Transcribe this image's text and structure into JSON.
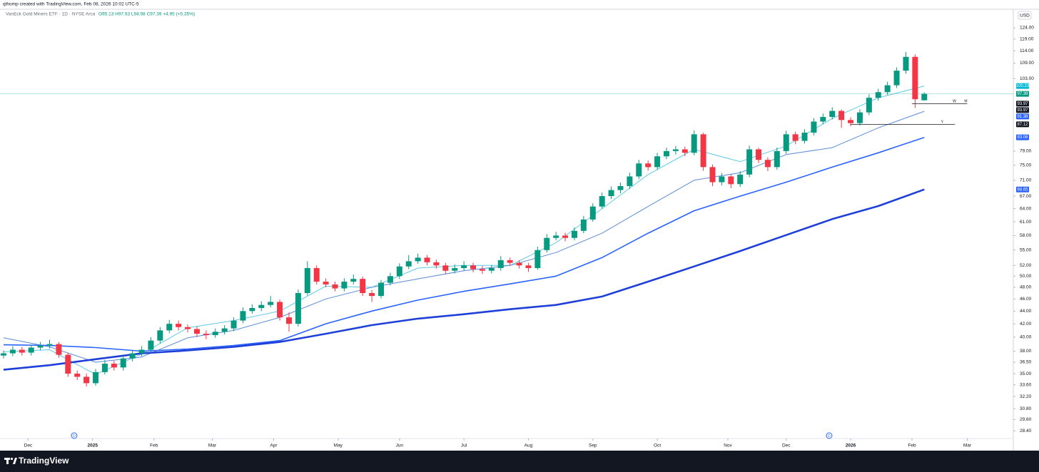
{
  "header": {
    "credit": "qthomp created with TradingView.com, Feb 08, 2026 10:02 UTC-5",
    "brand": "TradingView"
  },
  "chart_data": {
    "type": "candlestick",
    "legend": {
      "symbol": "VanEck Gold Miners ETF · 1D · NYSE Arca",
      "ohlc": "O95.13 H97.93 L94.98 C97.39 +4.95 (+5.35%)"
    },
    "currency": "USD",
    "log_scale": true,
    "grid": false,
    "up_color": "#089981",
    "down_color": "#f23645",
    "xlim": [
      0,
      329
    ],
    "xticks": [
      {
        "value": 8,
        "label": "Dec"
      },
      {
        "value": 29,
        "label": "2025"
      },
      {
        "value": 49,
        "label": "Feb"
      },
      {
        "value": 68,
        "label": "Mar"
      },
      {
        "value": 88,
        "label": "Apr"
      },
      {
        "value": 109,
        "label": "May"
      },
      {
        "value": 129,
        "label": "Jun"
      },
      {
        "value": 150,
        "label": "Jul"
      },
      {
        "value": 171,
        "label": "Aug"
      },
      {
        "value": 192,
        "label": "Sep"
      },
      {
        "value": 213,
        "label": "Oct"
      },
      {
        "value": 236,
        "label": "Nov"
      },
      {
        "value": 255,
        "label": "Dec"
      },
      {
        "value": 276,
        "label": "2026"
      },
      {
        "value": 296,
        "label": "Feb"
      },
      {
        "value": 314,
        "label": "Mar"
      }
    ],
    "ylim": [
      26.9,
      132.7
    ],
    "yticks": [
      {
        "value": 124,
        "label": "124.00"
      },
      {
        "value": 119,
        "label": "119.00"
      },
      {
        "value": 114,
        "label": "114.00"
      },
      {
        "value": 109,
        "label": "109.00"
      },
      {
        "value": 103,
        "label": "103.00"
      },
      {
        "value": 79,
        "label": "79.00"
      },
      {
        "value": 75,
        "label": "75.00"
      },
      {
        "value": 71,
        "label": "71.00"
      },
      {
        "value": 67,
        "label": "67.00"
      },
      {
        "value": 64,
        "label": "64.00"
      },
      {
        "value": 61,
        "label": "61.00"
      },
      {
        "value": 58,
        "label": "58.00"
      },
      {
        "value": 55,
        "label": "55.00"
      },
      {
        "value": 52,
        "label": "52.00"
      },
      {
        "value": 50,
        "label": "50.00"
      },
      {
        "value": 48,
        "label": "48.00"
      },
      {
        "value": 46,
        "label": "46.00"
      },
      {
        "value": 44,
        "label": "44.00"
      },
      {
        "value": 42,
        "label": "42.00"
      },
      {
        "value": 40,
        "label": "40.00"
      },
      {
        "value": 38,
        "label": "38.00"
      },
      {
        "value": 36.5,
        "label": "36.50"
      },
      {
        "value": 35,
        "label": "35.00"
      },
      {
        "value": 33.6,
        "label": "33.60"
      },
      {
        "value": 32.2,
        "label": "32.20"
      },
      {
        "value": 30.8,
        "label": "30.80"
      },
      {
        "value": 29.6,
        "label": "29.60"
      },
      {
        "value": 28.4,
        "label": "28.40"
      }
    ],
    "candles": [
      [
        0,
        37.4,
        38.1,
        37.0,
        37.7
      ],
      [
        3,
        37.7,
        38.7,
        37.3,
        38.2
      ],
      [
        6,
        38.2,
        38.6,
        37.4,
        37.8
      ],
      [
        9,
        37.8,
        38.9,
        37.4,
        38.5
      ],
      [
        12,
        38.5,
        39.3,
        38.1,
        38.8
      ],
      [
        15,
        38.8,
        39.6,
        38.4,
        39.0
      ],
      [
        18,
        39.0,
        39.3,
        37.1,
        37.5
      ],
      [
        21,
        37.5,
        37.8,
        34.6,
        35.0
      ],
      [
        24,
        35.0,
        35.4,
        34.2,
        34.6
      ],
      [
        27,
        34.6,
        35.0,
        33.4,
        33.8
      ],
      [
        30,
        33.8,
        35.6,
        33.5,
        35.2
      ],
      [
        33,
        35.2,
        36.8,
        34.9,
        36.3
      ],
      [
        36,
        36.3,
        36.7,
        35.4,
        35.8
      ],
      [
        39,
        35.8,
        37.4,
        35.4,
        37.0
      ],
      [
        42,
        37.0,
        38.2,
        36.6,
        37.7
      ],
      [
        45,
        37.7,
        38.7,
        37.3,
        38.2
      ],
      [
        48,
        38.2,
        40.0,
        37.8,
        39.5
      ],
      [
        51,
        39.5,
        41.5,
        39.1,
        41.0
      ],
      [
        54,
        41.0,
        42.6,
        40.6,
        42.0
      ],
      [
        57,
        42.0,
        42.5,
        41.0,
        41.5
      ],
      [
        60,
        41.5,
        41.9,
        40.7,
        41.2
      ],
      [
        63,
        41.2,
        41.6,
        40.0,
        40.5
      ],
      [
        66,
        40.5,
        41.0,
        39.7,
        40.3
      ],
      [
        69,
        40.3,
        41.3,
        39.9,
        40.8
      ],
      [
        72,
        40.8,
        41.8,
        40.4,
        41.3
      ],
      [
        75,
        41.3,
        43.0,
        40.9,
        42.5
      ],
      [
        78,
        42.5,
        44.6,
        42.1,
        44.0
      ],
      [
        81,
        44.0,
        45.1,
        43.6,
        44.5
      ],
      [
        84,
        44.5,
        45.6,
        44.0,
        45.0
      ],
      [
        87,
        45.0,
        46.5,
        44.6,
        45.5
      ],
      [
        90,
        45.5,
        45.9,
        42.5,
        43.0
      ],
      [
        93,
        43.0,
        43.8,
        40.8,
        42.0
      ],
      [
        96,
        42.0,
        47.6,
        41.6,
        47.0
      ],
      [
        99,
        47.0,
        52.8,
        46.6,
        51.5
      ],
      [
        102,
        51.5,
        52.0,
        48.5,
        49.0
      ],
      [
        105,
        49.0,
        49.6,
        48.0,
        48.5
      ],
      [
        108,
        48.5,
        49.0,
        47.3,
        47.8
      ],
      [
        111,
        47.8,
        49.6,
        47.3,
        49.0
      ],
      [
        114,
        49.0,
        50.3,
        48.5,
        49.5
      ],
      [
        117,
        49.5,
        49.9,
        46.5,
        47.0
      ],
      [
        120,
        47.0,
        47.5,
        45.5,
        46.5
      ],
      [
        123,
        46.5,
        49.3,
        46.1,
        48.8
      ],
      [
        126,
        48.8,
        50.6,
        48.3,
        50.0
      ],
      [
        129,
        50.0,
        52.4,
        49.5,
        51.8
      ],
      [
        132,
        51.8,
        54.0,
        51.3,
        52.8
      ],
      [
        135,
        52.8,
        54.3,
        52.3,
        53.5
      ],
      [
        138,
        53.5,
        54.0,
        52.0,
        52.6
      ],
      [
        141,
        52.6,
        53.1,
        51.4,
        52.0
      ],
      [
        144,
        52.0,
        52.5,
        50.4,
        51.0
      ],
      [
        147,
        51.0,
        52.2,
        50.5,
        51.5
      ],
      [
        150,
        51.5,
        52.8,
        51.0,
        52.0
      ],
      [
        153,
        52.0,
        52.5,
        50.7,
        51.3
      ],
      [
        156,
        51.3,
        51.9,
        50.4,
        51.0
      ],
      [
        159,
        51.0,
        52.1,
        50.5,
        51.5
      ],
      [
        162,
        51.5,
        53.8,
        51.0,
        53.0
      ],
      [
        165,
        53.0,
        53.5,
        51.9,
        52.5
      ],
      [
        168,
        52.5,
        53.0,
        51.4,
        52.0
      ],
      [
        171,
        52.0,
        52.5,
        50.8,
        51.5
      ],
      [
        174,
        51.5,
        55.7,
        51.2,
        55.0
      ],
      [
        177,
        55.0,
        58.3,
        54.5,
        57.5
      ],
      [
        180,
        57.5,
        58.8,
        57.0,
        58.0
      ],
      [
        183,
        58.0,
        58.6,
        56.8,
        57.5
      ],
      [
        186,
        57.5,
        59.8,
        57.0,
        59.0
      ],
      [
        189,
        59.0,
        62.3,
        58.5,
        61.5
      ],
      [
        192,
        61.5,
        65.3,
        61.0,
        64.5
      ],
      [
        195,
        64.5,
        67.9,
        64.0,
        67.0
      ],
      [
        198,
        67.0,
        69.4,
        66.3,
        68.5
      ],
      [
        201,
        68.5,
        70.4,
        67.7,
        69.5
      ],
      [
        204,
        69.5,
        73.0,
        68.8,
        72.0
      ],
      [
        207,
        72.0,
        76.5,
        71.3,
        75.5
      ],
      [
        210,
        75.5,
        76.3,
        73.6,
        74.5
      ],
      [
        213,
        74.5,
        78.5,
        73.8,
        77.5
      ],
      [
        216,
        77.5,
        80.0,
        76.7,
        79.0
      ],
      [
        219,
        79.0,
        80.5,
        78.0,
        79.5
      ],
      [
        222,
        79.5,
        80.3,
        77.5,
        78.5
      ],
      [
        225,
        78.5,
        85.2,
        77.8,
        84.0
      ],
      [
        228,
        84.0,
        84.5,
        73.5,
        74.5
      ],
      [
        231,
        74.5,
        75.2,
        69.5,
        70.5
      ],
      [
        234,
        70.5,
        72.9,
        69.7,
        72.0
      ],
      [
        237,
        72.0,
        72.5,
        69.0,
        70.0
      ],
      [
        240,
        70.0,
        73.4,
        69.3,
        72.5
      ],
      [
        243,
        72.5,
        80.6,
        71.8,
        79.5
      ],
      [
        246,
        79.5,
        80.0,
        75.6,
        76.5
      ],
      [
        249,
        76.5,
        77.2,
        73.4,
        74.5
      ],
      [
        252,
        74.5,
        80.0,
        73.8,
        79.0
      ],
      [
        255,
        79.0,
        85.1,
        78.2,
        84.0
      ],
      [
        258,
        84.0,
        84.8,
        81.0,
        82.0
      ],
      [
        261,
        82.0,
        85.6,
        81.2,
        84.5
      ],
      [
        264,
        84.5,
        89.1,
        83.7,
        88.0
      ],
      [
        267,
        88.0,
        90.6,
        87.1,
        89.5
      ],
      [
        270,
        89.5,
        92.7,
        88.7,
        91.5
      ],
      [
        273,
        91.5,
        92.0,
        86.0,
        88.5
      ],
      [
        276,
        88.5,
        89.4,
        86.5,
        87.5
      ],
      [
        279,
        87.5,
        92.1,
        86.7,
        91.0
      ],
      [
        282,
        91.0,
        97.2,
        90.1,
        96.0
      ],
      [
        285,
        96.0,
        99.2,
        95.0,
        98.0
      ],
      [
        288,
        98.0,
        101.8,
        97.0,
        100.5
      ],
      [
        291,
        100.5,
        107.3,
        99.5,
        106.0
      ],
      [
        294,
        106.0,
        113.5,
        104.8,
        111.5
      ],
      [
        297,
        111.5,
        112.5,
        92.5,
        95.5
      ],
      [
        300,
        95.13,
        97.93,
        94.98,
        97.39
      ]
    ],
    "series": [
      {
        "color": "#5fc9e8",
        "width": 1,
        "x": [
          0,
          15,
          30,
          45,
          60,
          75,
          90,
          105,
          120,
          135,
          150,
          165,
          180,
          195,
          210,
          225,
          240,
          255,
          270,
          285,
          300
        ],
        "values": [
          37.9,
          38.2,
          34.9,
          37.6,
          41.4,
          42.5,
          44.0,
          48.2,
          48.0,
          51.5,
          52.0,
          52.0,
          56.5,
          64.0,
          72.5,
          79.5,
          76.0,
          80.5,
          89.0,
          96.0,
          100.23
        ]
      },
      {
        "color": "#5a8bd8",
        "width": 1,
        "x": [
          0,
          15,
          30,
          45,
          60,
          75,
          90,
          105,
          120,
          135,
          150,
          165,
          180,
          195,
          210,
          225,
          240,
          255,
          270,
          285,
          300
        ],
        "values": [
          39.9,
          38.6,
          36.5,
          37.2,
          39.9,
          41.0,
          43.0,
          46.0,
          48.0,
          49.5,
          51.0,
          52.0,
          54.5,
          58.5,
          64.5,
          71.0,
          73.0,
          78.0,
          80.0,
          86.0,
          91.38
        ]
      },
      {
        "color": "#2962ff",
        "width": 1.6,
        "x": [
          0,
          15,
          30,
          45,
          60,
          75,
          90,
          105,
          120,
          135,
          150,
          165,
          180,
          195,
          210,
          225,
          240,
          255,
          270,
          285,
          300
        ],
        "values": [
          38.9,
          38.8,
          38.5,
          38.0,
          38.3,
          38.8,
          39.5,
          42.0,
          44.0,
          45.8,
          47.3,
          48.6,
          50.0,
          53.5,
          58.5,
          63.5,
          67.0,
          70.5,
          74.5,
          78.5,
          83.06
        ]
      },
      {
        "color": "#1e40d8",
        "width": 2.6,
        "x": [
          0,
          15,
          30,
          45,
          60,
          75,
          90,
          105,
          120,
          135,
          150,
          165,
          180,
          195,
          210,
          225,
          240,
          255,
          270,
          285,
          300
        ],
        "values": [
          35.5,
          36.1,
          36.9,
          37.7,
          38.1,
          38.6,
          39.3,
          40.5,
          41.8,
          42.8,
          43.5,
          44.3,
          45.0,
          46.4,
          49.0,
          51.8,
          54.8,
          58.1,
          61.6,
          64.6,
          68.65
        ]
      }
    ],
    "price_line": {
      "value": 97.39,
      "color": "#9fd8d8"
    },
    "price_tags": [
      {
        "value": 100.23,
        "color": "#00b8d4"
      },
      {
        "value": 97.39,
        "color": "#089981"
      },
      {
        "value": 93.97,
        "color": "#131722"
      },
      {
        "value": 93.97,
        "color": "#131722"
      },
      {
        "value": 91.38,
        "color": "#2962ff"
      },
      {
        "value": 87.12,
        "color": "#131722"
      },
      {
        "value": 83.06,
        "color": "#2962ff"
      },
      {
        "value": 68.65,
        "color": "#2962ff"
      }
    ],
    "levels": [
      {
        "value": 93.97,
        "from": 296,
        "to": 314,
        "labels": [
          "W",
          "M"
        ]
      },
      {
        "value": 87.12,
        "from": 276,
        "to": 310,
        "labels": [
          "Y"
        ]
      }
    ],
    "events": [
      {
        "x": 23,
        "label": "D"
      },
      {
        "x": 269,
        "label": "D"
      }
    ]
  }
}
